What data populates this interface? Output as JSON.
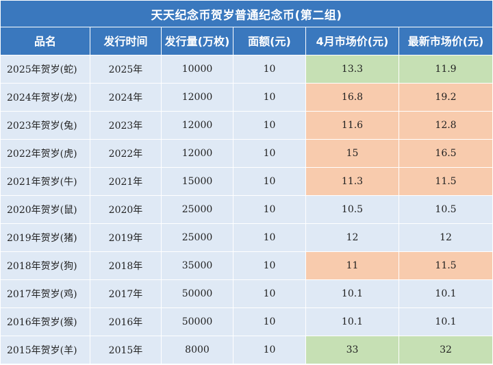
{
  "table": {
    "title": "天天纪念币贺岁普通纪念币(第二组)",
    "headers": {
      "name": "品名",
      "year": "发行时间",
      "quantity": "发行量(万枚)",
      "face_value": "面额(元)",
      "april_price": "4月市场价(元)",
      "latest_price": "最新市场价(元)"
    },
    "colors": {
      "header_bg": "#3a78be",
      "row_bg": "#dfe9f5",
      "highlight_green": "#c6e0b4",
      "highlight_orange": "#f8cbad"
    },
    "rows": [
      {
        "name": "2025年贺岁(蛇)",
        "year": "2025年",
        "quantity": "10000",
        "face_value": "10",
        "april_price": "13.3",
        "latest_price": "11.9",
        "highlight": "green"
      },
      {
        "name": "2024年贺岁(龙)",
        "year": "2024年",
        "quantity": "12000",
        "face_value": "10",
        "april_price": "16.8",
        "latest_price": "19.2",
        "highlight": "orange"
      },
      {
        "name": "2023年贺岁(兔)",
        "year": "2023年",
        "quantity": "12000",
        "face_value": "10",
        "april_price": "11.6",
        "latest_price": "12.8",
        "highlight": "orange"
      },
      {
        "name": "2022年贺岁(虎)",
        "year": "2022年",
        "quantity": "12000",
        "face_value": "10",
        "april_price": "15",
        "latest_price": "16.5",
        "highlight": "orange"
      },
      {
        "name": "2021年贺岁(牛)",
        "year": "2021年",
        "quantity": "15000",
        "face_value": "10",
        "april_price": "11.3",
        "latest_price": "11.5",
        "highlight": "orange"
      },
      {
        "name": "2020年贺岁(鼠)",
        "year": "2020年",
        "quantity": "25000",
        "face_value": "10",
        "april_price": "10.5",
        "latest_price": "10.5",
        "highlight": "none"
      },
      {
        "name": "2019年贺岁(猪)",
        "year": "2019年",
        "quantity": "25000",
        "face_value": "10",
        "april_price": "12",
        "latest_price": "12",
        "highlight": "none"
      },
      {
        "name": "2018年贺岁(狗)",
        "year": "2018年",
        "quantity": "35000",
        "face_value": "10",
        "april_price": "11",
        "latest_price": "11.5",
        "highlight": "orange"
      },
      {
        "name": "2017年贺岁(鸡)",
        "year": "2017年",
        "quantity": "50000",
        "face_value": "10",
        "april_price": "10.1",
        "latest_price": "10.1",
        "highlight": "none"
      },
      {
        "name": "2016年贺岁(猴)",
        "year": "2016年",
        "quantity": "50000",
        "face_value": "10",
        "april_price": "10.1",
        "latest_price": "10.1",
        "highlight": "none"
      },
      {
        "name": "2015年贺岁(羊)",
        "year": "2015年",
        "quantity": "8000",
        "face_value": "10",
        "april_price": "33",
        "latest_price": "32",
        "highlight": "green"
      }
    ]
  }
}
